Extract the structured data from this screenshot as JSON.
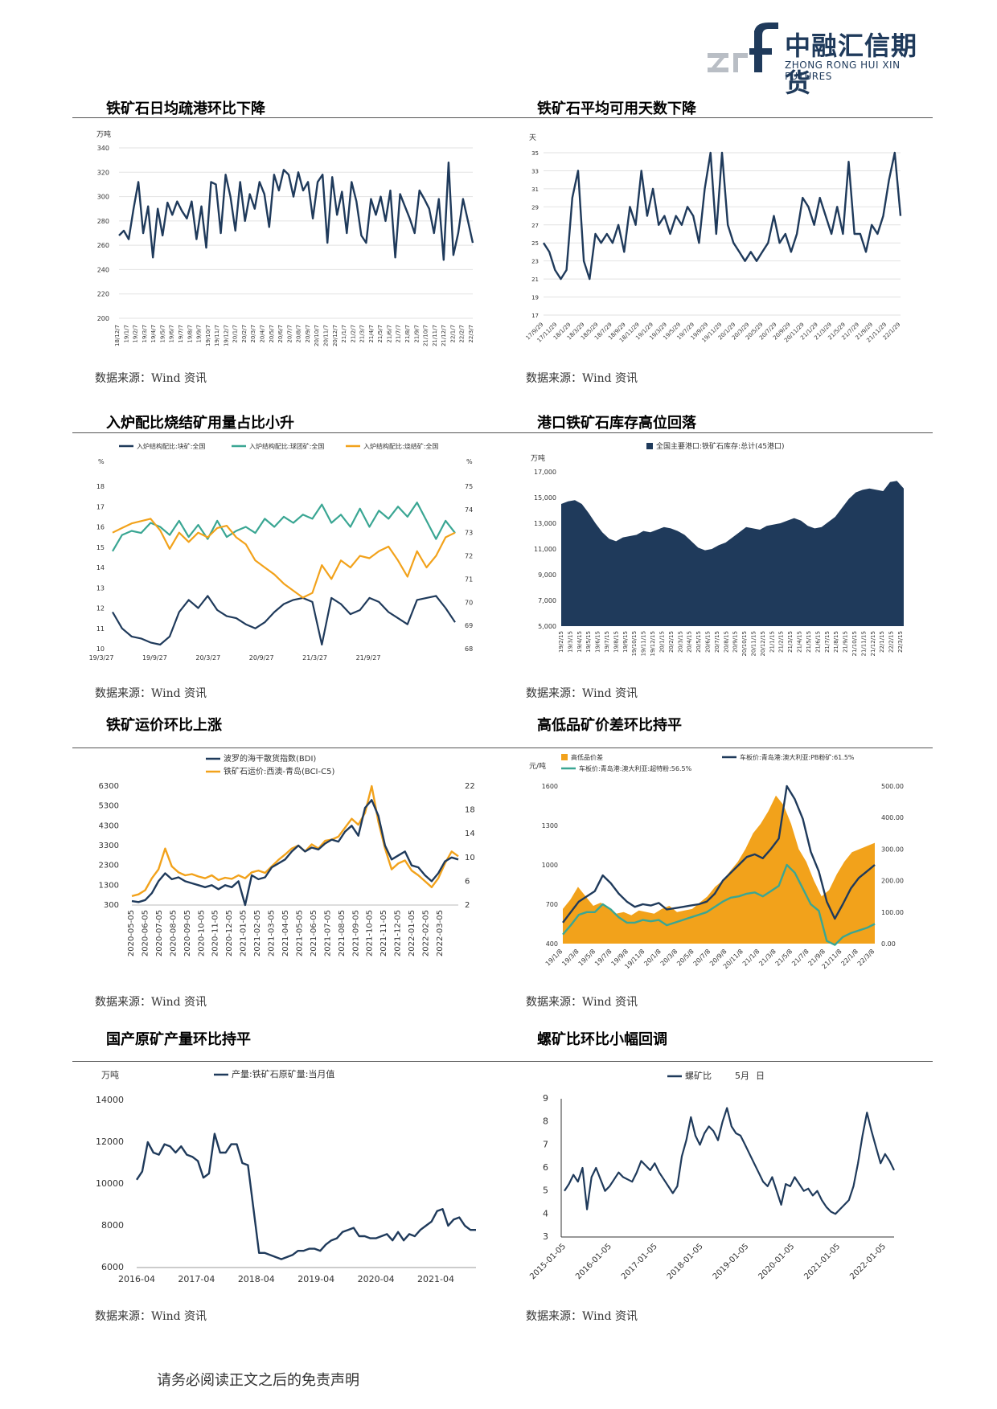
{
  "header": {
    "logo_mark": "zrf",
    "company_cn": "中融汇信期货",
    "company_en": "ZHONG RONG HUI XIN FUTURES"
  },
  "colors": {
    "navy": "#1f3a5b",
    "teal": "#3aa693",
    "orange": "#f2a21b"
  },
  "panels": [
    {
      "title": "铁矿石日均疏港环比下降",
      "source": "数据来源：Wind 资讯"
    },
    {
      "title": "铁矿石平均可用天数下降",
      "source": "数据来源：Wind 资讯"
    },
    {
      "title": "入炉配比烧结矿用量占比小升",
      "source": "数据来源：Wind 资讯"
    },
    {
      "title": "港口铁矿石库存高位回落",
      "source": "数据来源：Wind 资讯"
    },
    {
      "title": "铁矿运价环比上涨",
      "source": "数据来源：Wind 资讯"
    },
    {
      "title": "高低品矿价差环比持平",
      "source": "数据来源：Wind 资讯"
    },
    {
      "title": "国产原矿产量环比持平",
      "source": "数据来源：Wind 资讯"
    },
    {
      "title": "螺矿比环比小幅回调",
      "source": "数据来源：Wind 资讯"
    }
  ],
  "chart_data": [
    {
      "type": "line",
      "unit": "万吨",
      "ylim": [
        200,
        340
      ],
      "yticks": [
        200,
        220,
        240,
        260,
        280,
        300,
        320,
        340
      ],
      "xticks": [
        "18/12/7",
        "19/1/7",
        "19/2/7",
        "19/3/7",
        "19/4/7",
        "19/5/7",
        "19/6/7",
        "19/7/7",
        "19/8/7",
        "19/9/7",
        "19/10/7",
        "19/11/7",
        "19/12/7",
        "20/1/7",
        "20/2/7",
        "20/3/7",
        "20/4/7",
        "20/5/7",
        "20/6/7",
        "20/7/7",
        "20/8/7",
        "20/9/7",
        "20/10/7",
        "20/11/7",
        "20/12/7",
        "21/1/7",
        "21/2/7",
        "21/3/7",
        "21/4/7",
        "21/5/7",
        "21/6/7",
        "21/7/7",
        "21/8/7",
        "21/9/7",
        "21/10/7",
        "21/11/7",
        "21/12/7",
        "22/1/7",
        "22/2/7",
        "22/3/7"
      ],
      "values": [
        268,
        272,
        265,
        290,
        312,
        270,
        292,
        250,
        290,
        268,
        295,
        285,
        296,
        288,
        282,
        296,
        265,
        292,
        258,
        312,
        310,
        270,
        318,
        300,
        272,
        312,
        280,
        302,
        290,
        312,
        302,
        275,
        318,
        305,
        322,
        318,
        300,
        320,
        305,
        312,
        282,
        312,
        318,
        262,
        316,
        285,
        304,
        270,
        312,
        296,
        268,
        262,
        298,
        285,
        300,
        280,
        305,
        250,
        302,
        292,
        282,
        270,
        305,
        298,
        290,
        270,
        298,
        248,
        328,
        252,
        270,
        298,
        280,
        262
      ],
      "color": "#1f3a5b"
    },
    {
      "type": "line",
      "unit": "天",
      "ylim": [
        17,
        35
      ],
      "yticks": [
        17,
        19,
        21,
        23,
        25,
        27,
        29,
        31,
        33,
        35
      ],
      "xticks": [
        "17/9/29",
        "17/11/29",
        "18/1/29",
        "18/3/29",
        "18/5/29",
        "18/7/29",
        "18/9/29",
        "18/11/29",
        "19/1/29",
        "19/3/29",
        "19/5/29",
        "19/7/29",
        "19/9/29",
        "19/11/29",
        "20/1/29",
        "20/3/29",
        "20/5/29",
        "20/7/29",
        "20/9/29",
        "20/11/29",
        "21/1/29",
        "21/3/29",
        "21/5/29",
        "21/7/29",
        "21/9/29",
        "21/11/29",
        "22/1/29"
      ],
      "values": [
        25,
        24,
        22,
        21,
        22,
        30,
        33,
        23,
        21,
        26,
        25,
        26,
        25,
        27,
        24,
        29,
        27,
        33,
        28,
        31,
        27,
        28,
        26,
        28,
        27,
        29,
        28,
        25,
        31,
        35,
        26,
        35,
        27,
        25,
        24,
        23,
        24,
        23,
        24,
        25,
        28,
        25,
        26,
        24,
        26,
        30,
        29,
        27,
        30,
        28,
        26,
        29,
        26,
        34,
        26,
        26,
        24,
        27,
        26,
        28,
        32,
        35,
        28
      ]
    },
    {
      "type": "line",
      "legend": [
        "入炉结构配比:块矿:全国",
        "入炉结构配比:球团矿:全国",
        "入炉结构配比:烧结矿:全国"
      ],
      "left_unit": "%",
      "right_unit": "%",
      "ylim_left": [
        10,
        18
      ],
      "yticks_left": [
        10,
        11,
        12,
        13,
        14,
        15,
        16,
        17,
        18
      ],
      "ylim_right": [
        68,
        75
      ],
      "yticks_right": [
        68,
        69,
        70,
        71,
        72,
        73,
        74,
        75
      ],
      "xticks": [
        "19/3/27",
        "19/9/27",
        "20/3/27",
        "20/9/27",
        "21/3/27",
        "21/9/27"
      ],
      "series": [
        {
          "name": "入炉结构配比:块矿:全国",
          "axis": "left",
          "color": "#1f3a5b",
          "values": [
            11.8,
            11.0,
            10.6,
            10.5,
            10.3,
            10.2,
            10.6,
            11.8,
            12.4,
            12.0,
            12.6,
            11.9,
            11.6,
            11.5,
            11.2,
            11.0,
            11.3,
            11.8,
            12.2,
            12.4,
            12.5,
            12.3,
            10.2,
            12.5,
            12.2,
            11.7,
            11.9,
            12.5,
            12.3,
            11.8,
            11.5,
            11.2,
            12.4,
            12.5,
            12.6,
            12.0,
            11.3
          ]
        },
        {
          "name": "入炉结构配比:球团矿:全国",
          "axis": "left",
          "color": "#3aa693",
          "values": [
            14.8,
            15.6,
            15.8,
            15.7,
            16.2,
            16.0,
            15.6,
            16.3,
            15.5,
            16.1,
            15.4,
            16.3,
            15.5,
            15.8,
            16.0,
            15.7,
            16.4,
            16.0,
            16.5,
            16.2,
            16.6,
            16.4,
            17.1,
            16.2,
            16.6,
            16.0,
            16.9,
            16.0,
            16.8,
            16.4,
            17.0,
            16.5,
            17.2,
            16.3,
            15.4,
            16.3,
            15.7
          ]
        },
        {
          "name": "入炉结构配比:烧结矿:全国",
          "axis": "right",
          "color": "#f2a21b",
          "values": [
            73.0,
            73.2,
            73.4,
            73.5,
            73.6,
            73.1,
            72.3,
            73.0,
            72.6,
            73.0,
            72.8,
            73.2,
            73.3,
            72.8,
            72.5,
            71.8,
            71.5,
            71.2,
            70.8,
            70.5,
            70.2,
            70.4,
            71.6,
            71.0,
            71.8,
            71.5,
            72.0,
            71.9,
            72.2,
            72.4,
            71.8,
            71.1,
            72.2,
            71.5,
            72.0,
            72.8,
            73.0
          ]
        }
      ]
    },
    {
      "type": "area",
      "legend": [
        "全国主要港口:铁矿石库存:总计(45港口)"
      ],
      "unit": "万吨",
      "ylim": [
        5000,
        17000
      ],
      "yticks": [
        "5,000",
        "7,000",
        "9,000",
        "11,000",
        "13,000",
        "15,000",
        "17,000"
      ],
      "xticks": [
        "19/2/15",
        "19/3/15",
        "19/4/15",
        "19/5/15",
        "19/6/15",
        "19/7/15",
        "19/8/15",
        "19/9/15",
        "19/10/15",
        "19/11/15",
        "19/12/15",
        "20/1/15",
        "20/2/15",
        "20/3/15",
        "20/4/15",
        "20/5/15",
        "20/6/15",
        "20/7/15",
        "20/8/15",
        "20/9/15",
        "20/10/15",
        "20/11/15",
        "20/12/15",
        "21/1/15",
        "21/2/15",
        "21/3/15",
        "21/4/15",
        "21/5/15",
        "21/6/15",
        "21/7/15",
        "21/8/15",
        "21/9/15",
        "21/10/15",
        "21/11/15",
        "21/12/15",
        "22/1/15",
        "22/2/15",
        "22/3/15"
      ],
      "values": [
        14500,
        14700,
        14800,
        14500,
        13800,
        13000,
        12300,
        11800,
        11600,
        11900,
        12000,
        12100,
        12400,
        12300,
        12500,
        12700,
        12600,
        12400,
        12100,
        11600,
        11100,
        10900,
        11000,
        11300,
        11500,
        11900,
        12300,
        12700,
        12600,
        12500,
        12800,
        12900,
        13000,
        13200,
        13400,
        13200,
        12800,
        12600,
        12700,
        13100,
        13500,
        14200,
        14900,
        15400,
        15600,
        15700,
        15600,
        15500,
        16200,
        16300,
        15700
      ],
      "color": "#1f3a5b"
    },
    {
      "type": "line",
      "legend": [
        "波罗的海干散货指数(BDI)",
        "铁矿石运价:西澳-青岛(BCI-C5)"
      ],
      "yticks_left": [
        300,
        1300,
        2300,
        3300,
        4300,
        5300,
        6300
      ],
      "ylim_left": [
        300,
        6300
      ],
      "yticks_right": [
        2,
        6,
        10,
        14,
        18,
        22
      ],
      "ylim_right": [
        2,
        22
      ],
      "xticks": [
        "2020-05-05",
        "2020-06-05",
        "2020-07-05",
        "2020-08-05",
        "2020-09-05",
        "2020-10-05",
        "2020-11-05",
        "2020-12-05",
        "2021-01-05",
        "2021-02-05",
        "2021-03-05",
        "2021-04-05",
        "2021-05-05",
        "2021-06-05",
        "2021-07-05",
        "2021-08-05",
        "2021-09-05",
        "2021-10-05",
        "2021-11-05",
        "2021-12-05",
        "2022-01-05",
        "2022-02-05",
        "2022-03-05"
      ],
      "series": [
        {
          "name": "波罗的海干散货指数(BDI)",
          "axis": "left",
          "color": "#1f3a5b",
          "values": [
            500,
            450,
            550,
            900,
            1500,
            1900,
            1600,
            1700,
            1500,
            1400,
            1300,
            1200,
            1300,
            1100,
            1300,
            1200,
            1500,
            300,
            1800,
            1600,
            1700,
            2200,
            2400,
            2600,
            3000,
            3300,
            3000,
            3200,
            3100,
            3400,
            3600,
            3500,
            4000,
            4300,
            3800,
            5200,
            5600,
            4800,
            3300,
            2600,
            2800,
            3000,
            2300,
            2200,
            1800,
            1500,
            1900,
            2500,
            2700,
            2600
          ]
        },
        {
          "name": "铁矿石运价:西澳-青岛(BCI-C5)",
          "axis": "right",
          "color": "#f2a21b",
          "values": [
            3.5,
            3.8,
            4.5,
            6.5,
            8.0,
            11.5,
            8.5,
            7.5,
            7.0,
            7.2,
            6.8,
            6.5,
            7.0,
            6.2,
            6.6,
            6.4,
            7.0,
            6.5,
            7.5,
            7.8,
            7.4,
            8.5,
            9.6,
            10.5,
            11.5,
            12.0,
            11.0,
            12.2,
            11.5,
            12.8,
            13.0,
            13.5,
            15.0,
            16.5,
            15.5,
            17.5,
            22.0,
            16.0,
            11.5,
            8.0,
            9.0,
            9.5,
            7.8,
            7.0,
            6.0,
            5.0,
            6.5,
            9.0,
            11.0,
            10.2
          ]
        }
      ]
    },
    {
      "type": "area",
      "legend": [
        "高低品价差",
        "车板价:青岛港:澳大利亚:PB粉矿:61.5%",
        "车板价:青岛港:澳大利亚:超特粉:56.5%"
      ],
      "left_unit": "元/吨",
      "yticks_left": [
        400,
        700,
        1000,
        1300,
        1600
      ],
      "ylim_left": [
        400,
        1600
      ],
      "yticks_right": [
        "0.00",
        "100.00",
        "200.00",
        "300.00",
        "400.00",
        "500.00"
      ],
      "ylim_right": [
        0,
        500
      ],
      "xticks": [
        "19/1/8",
        "19/3/8",
        "19/5/8",
        "19/7/8",
        "19/9/8",
        "19/11/8",
        "20/1/8",
        "20/3/8",
        "20/5/8",
        "20/7/8",
        "20/9/8",
        "20/11/8",
        "21/1/8",
        "21/3/8",
        "21/5/8",
        "21/7/8",
        "21/9/8",
        "21/11/8",
        "22/1/8",
        "22/3/8"
      ],
      "series": [
        {
          "name": "高低品价差",
          "axis": "right",
          "color": "#f2a21b",
          "values": [
            110,
            140,
            180,
            150,
            120,
            130,
            110,
            95,
            100,
            90,
            105,
            100,
            95,
            110,
            120,
            100,
            105,
            110,
            130,
            150,
            180,
            200,
            230,
            260,
            300,
            350,
            380,
            420,
            470,
            440,
            380,
            300,
            260,
            200,
            150,
            170,
            220,
            260,
            290,
            300,
            310,
            320
          ]
        },
        {
          "name": "车板价:青岛港:澳大利亚:PB粉矿:61.5%",
          "axis": "left",
          "color": "#1f3a5b",
          "values": [
            560,
            640,
            720,
            760,
            800,
            920,
            860,
            780,
            720,
            680,
            700,
            690,
            710,
            660,
            670,
            680,
            690,
            700,
            720,
            780,
            880,
            940,
            1000,
            1060,
            1080,
            1050,
            1120,
            1200,
            1600,
            1500,
            1350,
            1100,
            950,
            720,
            590,
            700,
            820,
            900,
            950,
            1000
          ]
        },
        {
          "name": "车板价:青岛港:澳大利亚:超特粉:56.5%",
          "axis": "left",
          "color": "#3aa693",
          "values": [
            470,
            540,
            620,
            640,
            640,
            700,
            660,
            600,
            560,
            560,
            580,
            570,
            580,
            540,
            560,
            580,
            600,
            620,
            640,
            680,
            720,
            750,
            760,
            780,
            790,
            760,
            800,
            840,
            1000,
            940,
            820,
            700,
            650,
            420,
            390,
            450,
            480,
            500,
            520,
            550
          ]
        }
      ]
    },
    {
      "type": "line",
      "legend": [
        "产量:铁矿石原矿量:当月值"
      ],
      "unit": "万吨",
      "ylim": [
        6000,
        14000
      ],
      "yticks": [
        6000,
        8000,
        10000,
        12000,
        14000
      ],
      "xticks": [
        "2016-04",
        "2017-04",
        "2018-04",
        "2019-04",
        "2020-04",
        "2021-04"
      ],
      "values": [
        10200,
        10600,
        12000,
        11500,
        11400,
        11900,
        11800,
        11500,
        11800,
        11400,
        11300,
        11100,
        10300,
        10500,
        12400,
        11500,
        11500,
        11900,
        11900,
        11000,
        10900,
        8800,
        6700,
        6700,
        6600,
        6500,
        6400,
        6500,
        6600,
        6800,
        6800,
        6900,
        6900,
        6800,
        7100,
        7300,
        7400,
        7700,
        7800,
        7900,
        7500,
        7500,
        7400,
        7400,
        7500,
        7600,
        7300,
        7700,
        7300,
        7600,
        7500,
        7800,
        8000,
        8200,
        8700,
        8800,
        8000,
        8300,
        8400,
        8000,
        7800,
        7800
      ],
      "color": "#1f3a5b"
    },
    {
      "type": "line",
      "legend": [
        "螺矿比",
        "5月",
        "日"
      ],
      "ylim": [
        3,
        9
      ],
      "yticks": [
        3,
        4,
        5,
        6,
        7,
        8,
        9
      ],
      "xticks": [
        "2015-01-05",
        "2016-01-05",
        "2017-01-05",
        "2018-01-05",
        "2019-01-05",
        "2020-01-05",
        "2021-01-05",
        "2022-01-05"
      ],
      "values": [
        5.0,
        5.3,
        5.7,
        5.4,
        6.0,
        4.2,
        5.6,
        6.0,
        5.5,
        5.0,
        5.2,
        5.5,
        5.8,
        5.6,
        5.5,
        5.4,
        5.8,
        6.3,
        6.1,
        5.9,
        6.2,
        5.8,
        5.5,
        5.2,
        4.9,
        5.2,
        6.5,
        7.2,
        8.2,
        7.4,
        7.0,
        7.5,
        7.8,
        7.6,
        7.2,
        8.0,
        8.6,
        7.8,
        7.5,
        7.4,
        7.0,
        6.6,
        6.2,
        5.8,
        5.4,
        5.2,
        5.6,
        5.0,
        4.4,
        5.3,
        5.2,
        5.6,
        5.3,
        5.0,
        5.1,
        4.8,
        5.0,
        4.6,
        4.3,
        4.1,
        4.0,
        4.2,
        4.4,
        4.6,
        5.2,
        6.2,
        7.4,
        8.4,
        7.6,
        6.9,
        6.2,
        6.6,
        6.3,
        5.9
      ],
      "color": "#1f3a5b"
    }
  ],
  "footer": {
    "disclaimer": "请务必阅读正文之后的免责声明"
  }
}
